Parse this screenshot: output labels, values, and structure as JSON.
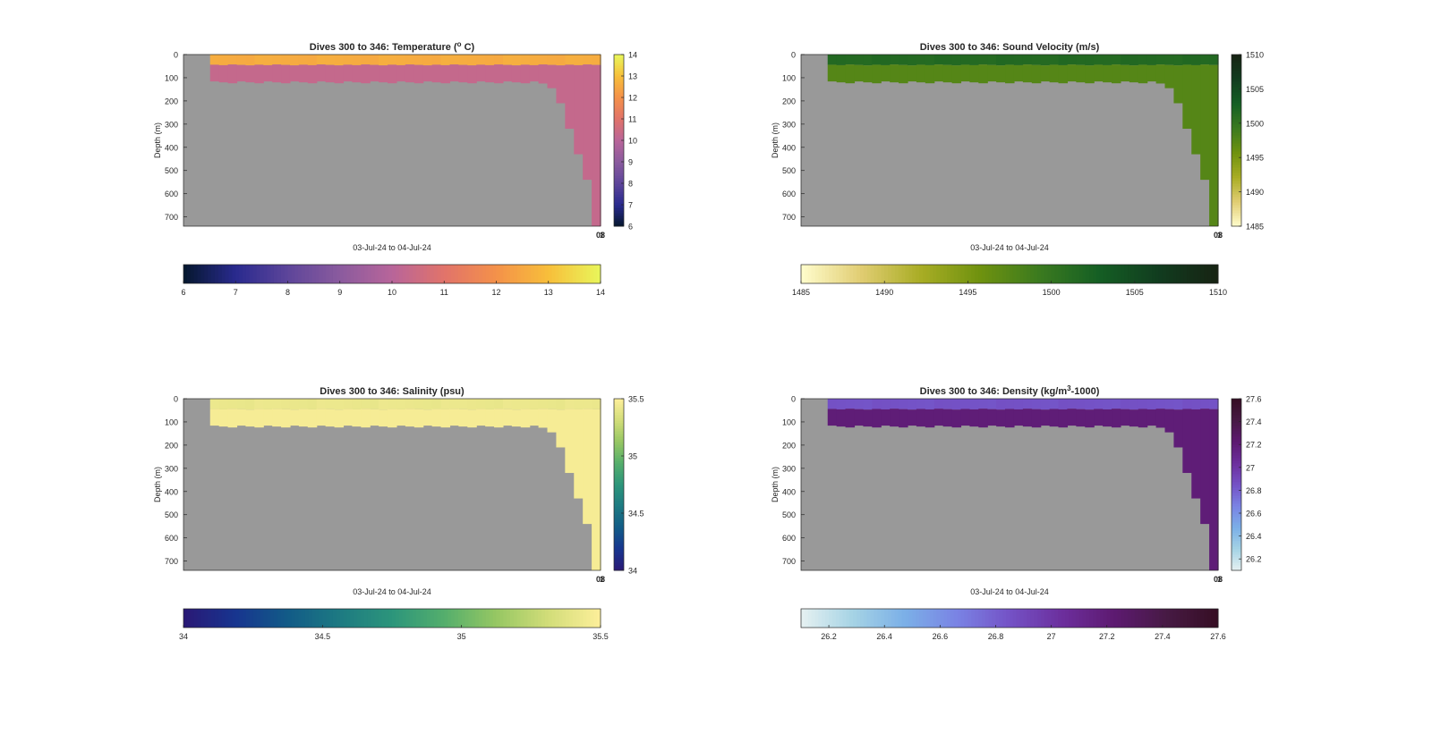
{
  "colormaps": {
    "thermal": [
      "#05172d",
      "#292a8e",
      "#5d459a",
      "#8a5b9e",
      "#b8659a",
      "#e1736a",
      "#f4914a",
      "#f7be3a",
      "#e9f65b"
    ],
    "speed": [
      "#fffdcd",
      "#e1cd73",
      "#a9ad25",
      "#6f920f",
      "#3b7a1f",
      "#155f24",
      "#113c1f",
      "#172313"
    ],
    "haline": [
      "#2a1875",
      "#17358f",
      "#125b87",
      "#1d7a82",
      "#2c957b",
      "#54ae6c",
      "#96c763",
      "#d2dd79",
      "#fdef9a"
    ],
    "dense": [
      "#e6f1f1",
      "#a5d3e5",
      "#7bafe7",
      "#7a83e4",
      "#7452c6",
      "#6c2f9d",
      "#5d1a71",
      "#471a44",
      "#360e24"
    ]
  },
  "colors": {
    "no_data": "#999999"
  },
  "chart_data": [
    {
      "type": "heatmap",
      "title": "Dives 300 to 346: Temperature (",
      "title_sup": "o",
      "title_tail": " C)",
      "xlabel": "03-Jul-24 to 04-Jul-24",
      "ylabel": "Depth (m)",
      "x_tick_labels": [
        "08",
        "1"
      ],
      "ylim": [
        740,
        0
      ],
      "y_ticks": [
        0,
        100,
        200,
        300,
        400,
        500,
        600,
        700
      ],
      "colormap": "thermal",
      "clim": [
        6,
        14
      ],
      "colorbar_ticks": [
        6,
        7,
        8,
        9,
        10,
        11,
        12,
        13,
        14
      ],
      "horizontal_colorbar_ticks": [
        6,
        7,
        8,
        9,
        10,
        11,
        12,
        13,
        14
      ],
      "profile": {
        "surface": {
          "depth_max": 45,
          "value": 12.6
        },
        "lower": {
          "value": 10.3
        },
        "shelf_bottom_depth": 120
      }
    },
    {
      "type": "heatmap",
      "title": "Dives 300 to 346: Sound Velocity (m/s)",
      "xlabel": "03-Jul-24 to 04-Jul-24",
      "ylabel": "Depth (m)",
      "x_tick_labels": [
        "08",
        "1"
      ],
      "ylim": [
        740,
        0
      ],
      "y_ticks": [
        0,
        100,
        200,
        300,
        400,
        500,
        600,
        700
      ],
      "colormap": "speed",
      "clim": [
        1485,
        1510
      ],
      "colorbar_ticks": [
        1485,
        1490,
        1495,
        1500,
        1505,
        1510
      ],
      "horizontal_colorbar_ticks": [
        1485,
        1490,
        1495,
        1500,
        1505,
        1510
      ],
      "profile": {
        "surface": {
          "depth_max": 45,
          "value": 1501.5
        },
        "lower": {
          "value": 1497.5
        },
        "shelf_bottom_depth": 120
      }
    },
    {
      "type": "heatmap",
      "title": "Dives 300 to 346: Salinity (psu)",
      "xlabel": "03-Jul-24 to 04-Jul-24",
      "ylabel": "Depth (m)",
      "x_tick_labels": [
        "08",
        "1"
      ],
      "ylim": [
        740,
        0
      ],
      "y_ticks": [
        0,
        100,
        200,
        300,
        400,
        500,
        600,
        700
      ],
      "colormap": "haline",
      "clim": [
        34,
        35.5
      ],
      "colorbar_ticks": [
        34,
        34.5,
        35,
        35.5
      ],
      "horizontal_colorbar_ticks": [
        34,
        34.5,
        35,
        35.5
      ],
      "profile": {
        "surface": {
          "depth_max": 45,
          "value": 35.42
        },
        "lower": {
          "value": 35.47
        },
        "shelf_bottom_depth": 120
      }
    },
    {
      "type": "heatmap",
      "title": "Dives 300 to 346: Density (kg/m",
      "title_sup": "3",
      "title_tail": "-1000)",
      "xlabel": "03-Jul-24 to 04-Jul-24",
      "ylabel": "Depth (m)",
      "x_tick_labels": [
        "08",
        "1"
      ],
      "ylim": [
        740,
        0
      ],
      "y_ticks": [
        0,
        100,
        200,
        300,
        400,
        500,
        600,
        700
      ],
      "colormap": "dense",
      "clim": [
        26.1,
        27.6
      ],
      "colorbar_ticks": [
        26.2,
        26.4,
        26.6,
        26.8,
        27,
        27.2,
        27.4,
        27.6
      ],
      "horizontal_colorbar_ticks": [
        26.2,
        26.4,
        26.6,
        26.8,
        27,
        27.2,
        27.4,
        27.6
      ],
      "profile": {
        "surface": {
          "depth_max": 45,
          "value": 26.85
        },
        "lower": {
          "value": 27.2
        },
        "shelf_bottom_depth": 120
      }
    }
  ]
}
